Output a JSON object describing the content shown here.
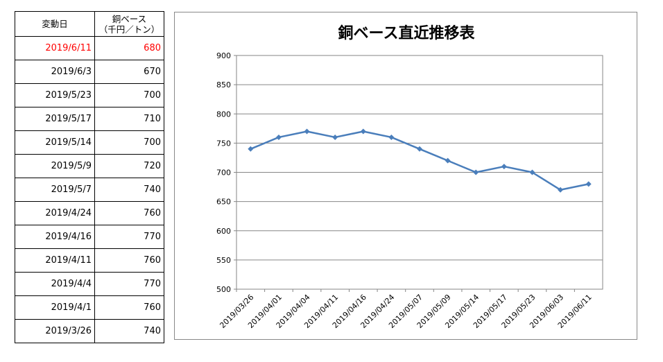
{
  "table": {
    "header_date": "変動日",
    "header_price_line1": "銅ベース",
    "header_price_line2": "（千円／トン）",
    "highlight_color": "#ff0000",
    "rows": [
      {
        "date": "2019/6/11",
        "price": "680",
        "highlight": true
      },
      {
        "date": "2019/6/3",
        "price": "670",
        "highlight": false
      },
      {
        "date": "2019/5/23",
        "price": "700",
        "highlight": false
      },
      {
        "date": "2019/5/17",
        "price": "710",
        "highlight": false
      },
      {
        "date": "2019/5/14",
        "price": "700",
        "highlight": false
      },
      {
        "date": "2019/5/9",
        "price": "720",
        "highlight": false
      },
      {
        "date": "2019/5/7",
        "price": "740",
        "highlight": false
      },
      {
        "date": "2019/4/24",
        "price": "760",
        "highlight": false
      },
      {
        "date": "2019/4/16",
        "price": "770",
        "highlight": false
      },
      {
        "date": "2019/4/11",
        "price": "760",
        "highlight": false
      },
      {
        "date": "2019/4/4",
        "price": "770",
        "highlight": false
      },
      {
        "date": "2019/4/1",
        "price": "760",
        "highlight": false
      },
      {
        "date": "2019/3/26",
        "price": "740",
        "highlight": false
      }
    ]
  },
  "chart_data": {
    "type": "line",
    "title": "銅ベース直近推移表",
    "categories": [
      "2019/03/26",
      "2019/04/01",
      "2019/04/04",
      "2019/04/11",
      "2019/04/16",
      "2019/04/24",
      "2019/05/07",
      "2019/05/09",
      "2019/05/14",
      "2019/05/17",
      "2019/05/23",
      "2019/06/03",
      "2019/06/11"
    ],
    "series": [
      {
        "values": [
          740,
          760,
          770,
          760,
          770,
          760,
          740,
          720,
          700,
          710,
          700,
          670,
          680
        ],
        "color": "#4a7ebb",
        "marker": "diamond"
      }
    ],
    "ylim": [
      500,
      900
    ],
    "yticks": [
      500,
      550,
      600,
      650,
      700,
      750,
      800,
      850,
      900
    ],
    "grid": true,
    "xlabel": "",
    "ylabel": ""
  }
}
